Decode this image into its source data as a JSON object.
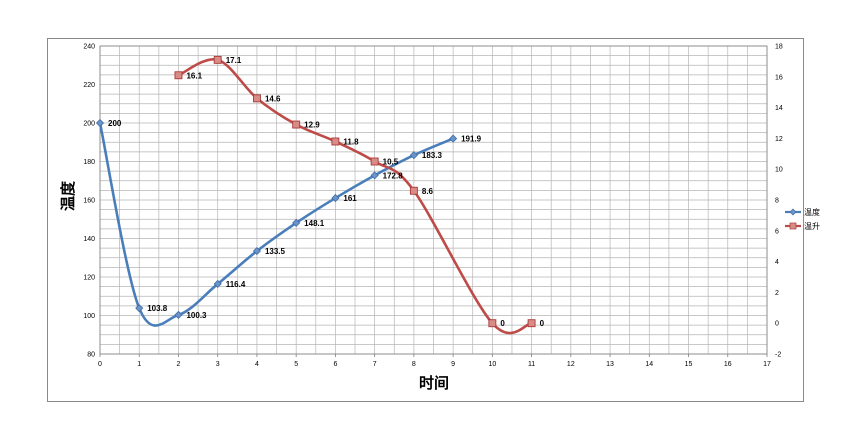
{
  "chart_data": {
    "type": "line",
    "xlabel": "时间",
    "ylabel": "温度",
    "xlim": [
      0,
      17
    ],
    "ylim": [
      80,
      240
    ],
    "y2lim": [
      -2,
      18
    ],
    "x_ticks": [
      0,
      1,
      2,
      3,
      4,
      5,
      6,
      7,
      8,
      9,
      10,
      11,
      12,
      13,
      14,
      15,
      16,
      17
    ],
    "y_ticks": [
      80,
      100,
      120,
      140,
      160,
      180,
      200,
      220,
      240
    ],
    "y2_ticks": [
      -2,
      0,
      2,
      4,
      6,
      8,
      10,
      12,
      14,
      16,
      18
    ],
    "grid": true,
    "legend_position": "right",
    "series": [
      {
        "name": "温度",
        "axis": "left",
        "color": "#4a7ebb",
        "marker": "diamond",
        "x": [
          0,
          1,
          2,
          3,
          4,
          5,
          6,
          7,
          8,
          9
        ],
        "values": [
          200,
          103.8,
          100.3,
          116.4,
          133.5,
          148.1,
          161,
          172.8,
          183.3,
          191.9
        ],
        "labels": [
          "200",
          "103.8",
          "100.3",
          "116.4",
          "133.5",
          "148.1",
          "161",
          "172.8",
          "183.3",
          "191.9"
        ]
      },
      {
        "name": "温升",
        "axis": "right",
        "color": "#be4b48",
        "marker": "square",
        "x": [
          2,
          3,
          4,
          5,
          6,
          7,
          8,
          10,
          11
        ],
        "values": [
          16.1,
          17.1,
          14.6,
          12.9,
          11.8,
          10.5,
          8.6,
          0,
          0
        ],
        "labels": [
          "16.1",
          "17.1",
          "14.6",
          "12.9",
          "11.8",
          "10.5",
          "8.6",
          "0",
          "0"
        ]
      }
    ]
  }
}
